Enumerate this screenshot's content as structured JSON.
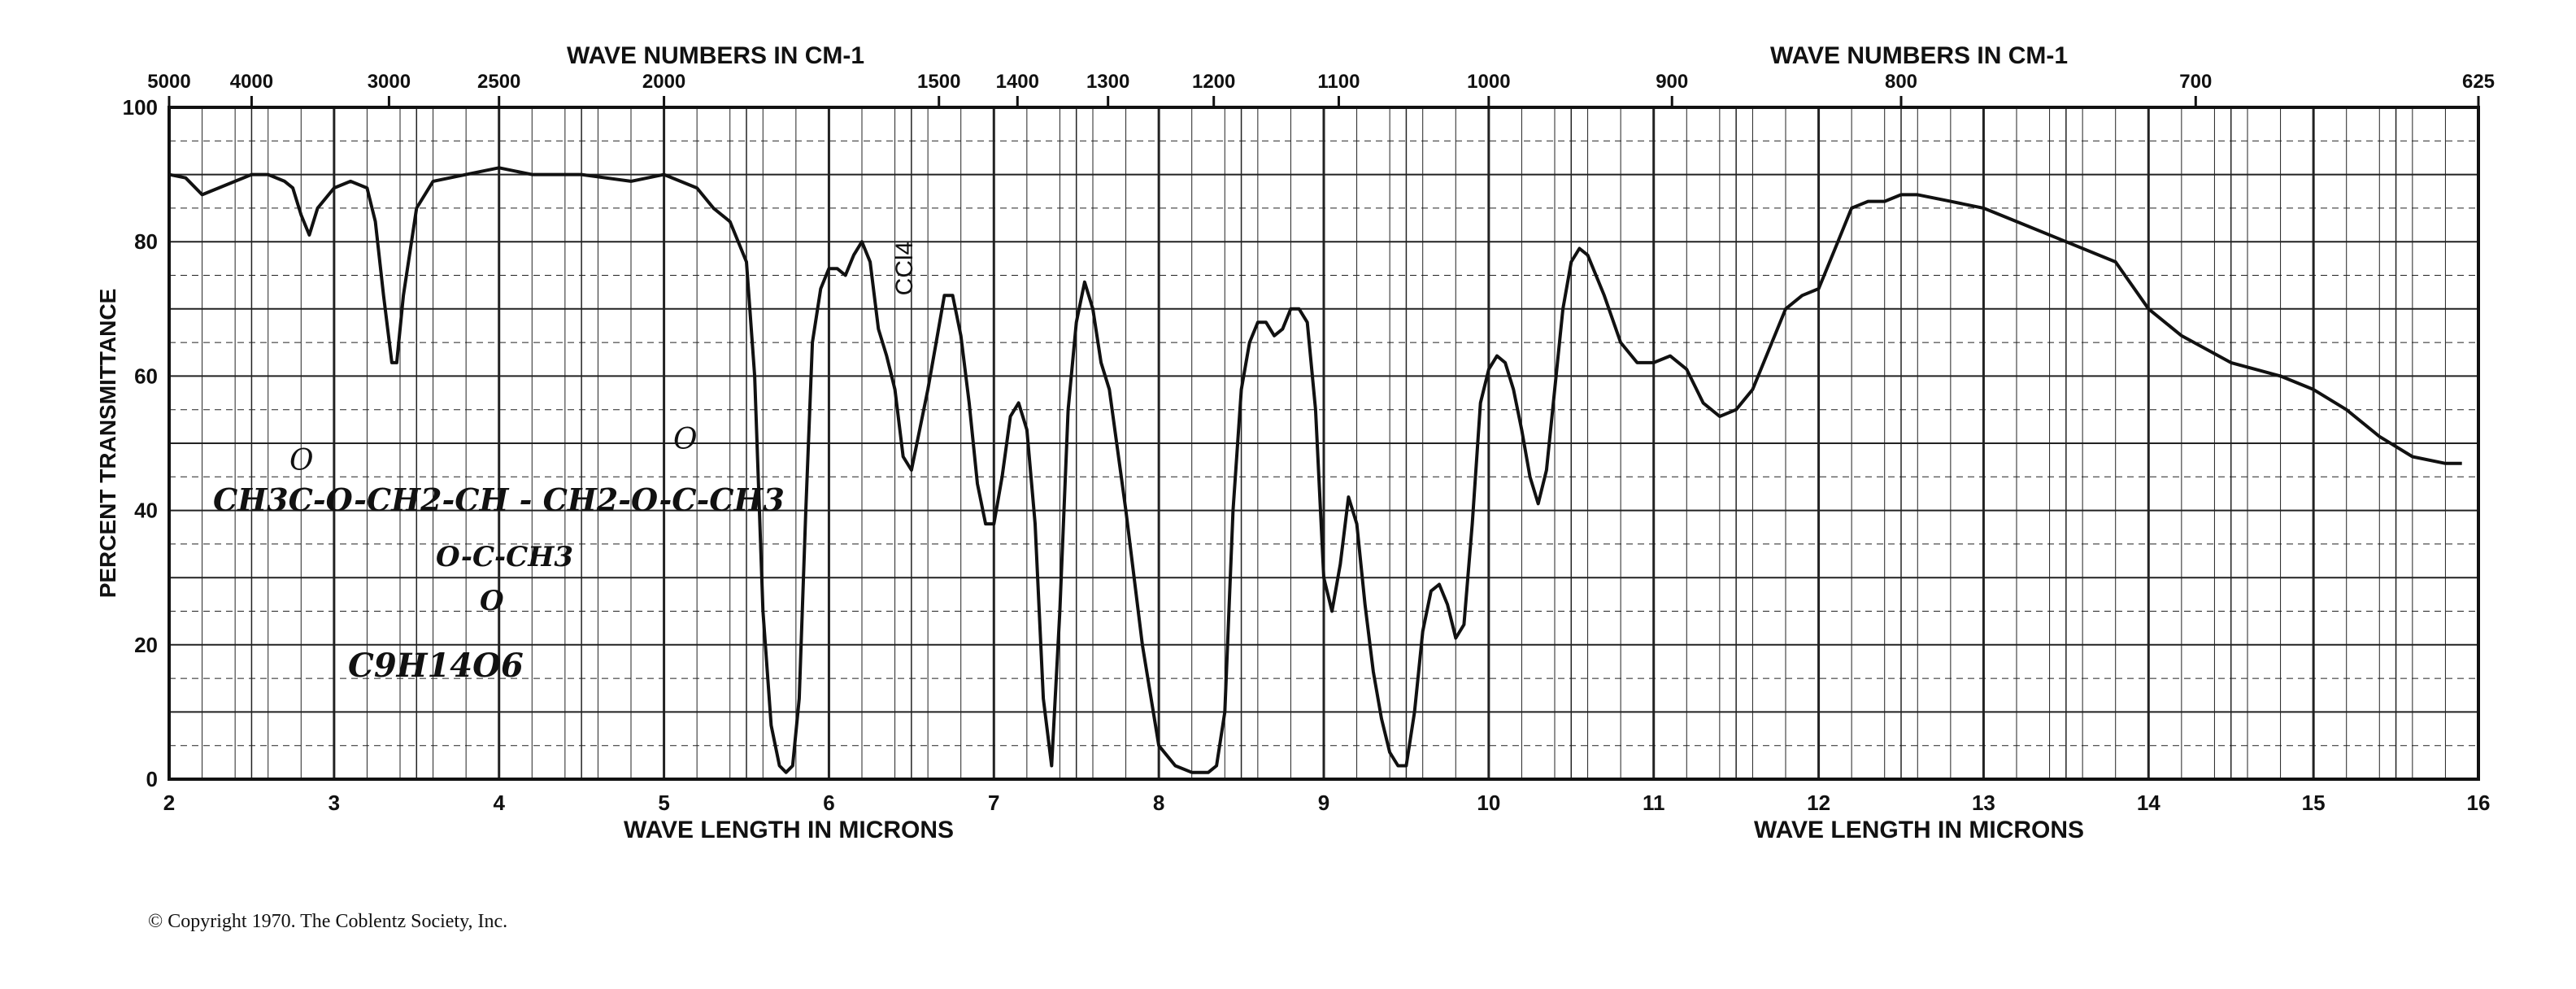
{
  "chart_data": {
    "type": "line",
    "x_unit": "microns",
    "xlim": [
      2,
      16
    ],
    "ylim": [
      0,
      100
    ],
    "grid": true,
    "xlabel": "WAVE LENGTH IN MICRONS",
    "ylabel": "PERCENT TRANSMITTANCE",
    "top_label": "WAVE NUMBERS IN CM-1",
    "x_ticks": [
      "2",
      "3",
      "4",
      "5",
      "6",
      "7",
      "8",
      "9",
      "10",
      "11",
      "12",
      "13",
      "14",
      "15",
      "16"
    ],
    "y_ticks": [
      "0",
      "20",
      "40",
      "60",
      "80",
      "100"
    ],
    "top_ticks": [
      {
        "label": "5000",
        "micron": 2.0
      },
      {
        "label": "4000",
        "micron": 2.5
      },
      {
        "label": "3000",
        "micron": 3.333
      },
      {
        "label": "2500",
        "micron": 4.0
      },
      {
        "label": "2000",
        "micron": 5.0
      },
      {
        "label": "1500",
        "micron": 6.667
      },
      {
        "label": "1400",
        "micron": 7.143
      },
      {
        "label": "1300",
        "micron": 7.692
      },
      {
        "label": "1200",
        "micron": 8.333
      },
      {
        "label": "1100",
        "micron": 9.091
      },
      {
        "label": "1000",
        "micron": 10.0
      },
      {
        "label": "900",
        "micron": 11.111
      },
      {
        "label": "800",
        "micron": 12.5
      },
      {
        "label": "700",
        "micron": 14.286
      },
      {
        "label": "625",
        "micron": 16.0
      }
    ],
    "series": [
      {
        "color": "#111111",
        "x": [
          2.0,
          2.1,
          2.2,
          2.3,
          2.4,
          2.5,
          2.6,
          2.7,
          2.75,
          2.8,
          2.85,
          2.9,
          3.0,
          3.1,
          3.2,
          3.25,
          3.3,
          3.35,
          3.38,
          3.42,
          3.5,
          3.6,
          3.8,
          4.0,
          4.2,
          4.5,
          4.8,
          5.0,
          5.2,
          5.3,
          5.4,
          5.5,
          5.55,
          5.6,
          5.65,
          5.7,
          5.74,
          5.78,
          5.82,
          5.86,
          5.9,
          5.95,
          6.0,
          6.05,
          6.1,
          6.15,
          6.2,
          6.25,
          6.3,
          6.35,
          6.4,
          6.45,
          6.5,
          6.55,
          6.6,
          6.65,
          6.7,
          6.75,
          6.8,
          6.85,
          6.9,
          6.95,
          7.0,
          7.05,
          7.1,
          7.15,
          7.2,
          7.25,
          7.3,
          7.35,
          7.4,
          7.45,
          7.5,
          7.55,
          7.6,
          7.65,
          7.7,
          7.8,
          7.9,
          8.0,
          8.1,
          8.2,
          8.3,
          8.35,
          8.4,
          8.45,
          8.5,
          8.55,
          8.6,
          8.65,
          8.7,
          8.75,
          8.8,
          8.85,
          8.9,
          8.95,
          9.0,
          9.05,
          9.1,
          9.15,
          9.2,
          9.25,
          9.3,
          9.35,
          9.4,
          9.45,
          9.5,
          9.55,
          9.6,
          9.65,
          9.7,
          9.75,
          9.8,
          9.85,
          9.9,
          9.95,
          10.0,
          10.05,
          10.1,
          10.15,
          10.2,
          10.25,
          10.3,
          10.35,
          10.4,
          10.45,
          10.5,
          10.55,
          10.6,
          10.7,
          10.8,
          10.9,
          11.0,
          11.1,
          11.2,
          11.3,
          11.4,
          11.5,
          11.6,
          11.7,
          11.8,
          11.9,
          12.0,
          12.1,
          12.2,
          12.3,
          12.4,
          12.5,
          12.6,
          12.8,
          13.0,
          13.2,
          13.5,
          13.8,
          14.0,
          14.2,
          14.5,
          14.8,
          15.0,
          15.2,
          15.4,
          15.6,
          15.8,
          15.9
        ],
        "y": [
          90,
          89.5,
          87,
          88,
          89,
          90,
          90,
          89,
          88,
          84,
          81,
          85,
          88,
          89,
          88,
          83,
          72,
          62,
          62,
          72,
          85,
          89,
          90,
          91,
          90,
          90,
          89,
          90,
          88,
          85,
          83,
          77,
          60,
          25,
          8,
          2,
          1,
          2,
          12,
          40,
          65,
          73,
          76,
          76,
          75,
          78,
          80,
          77,
          67,
          63,
          58,
          48,
          46,
          52,
          58,
          65,
          72,
          72,
          66,
          56,
          44,
          38,
          38,
          45,
          54,
          56,
          52,
          38,
          12,
          2,
          25,
          55,
          68,
          74,
          70,
          62,
          58,
          40,
          20,
          5,
          2,
          1,
          1,
          2,
          10,
          40,
          58,
          65,
          68,
          68,
          66,
          67,
          70,
          70,
          68,
          55,
          30,
          25,
          32,
          42,
          38,
          26,
          16,
          9,
          4,
          2,
          2,
          10,
          22,
          28,
          29,
          26,
          21,
          23,
          38,
          56,
          61,
          63,
          62,
          58,
          52,
          45,
          41,
          46,
          58,
          70,
          77,
          79,
          78,
          72,
          65,
          62,
          62,
          63,
          61,
          56,
          54,
          55,
          58,
          64,
          70,
          72,
          73,
          79,
          85,
          86,
          86,
          87,
          87,
          86,
          85,
          83,
          80,
          77,
          70,
          66,
          62,
          60,
          58,
          55,
          51,
          48,
          47,
          47
        ]
      }
    ],
    "annotations": {
      "solvent": "CCl4",
      "structure_line1": "CH3C-O-CH2-CH - CH2-O-C-CH3",
      "structure_oxo_left": "O",
      "structure_oxo_right": "O",
      "structure_line2": "O-C-CH3",
      "structure_oxo_bottom": "O",
      "formula": "C9H14O6"
    }
  },
  "footer": {
    "copyright": "© Copyright 1970. The Coblentz Society, Inc."
  }
}
